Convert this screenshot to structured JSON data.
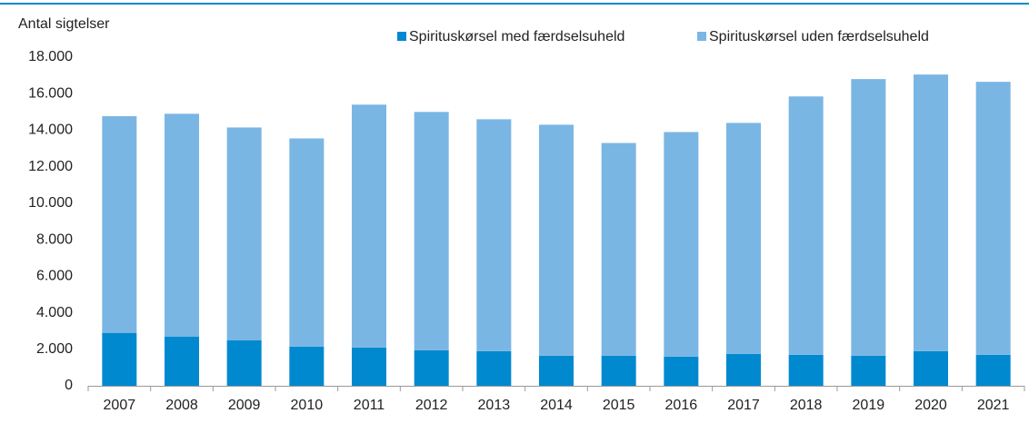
{
  "chart_data": {
    "type": "stacked_bar",
    "y_axis_label": "Antal sigtelser",
    "categories": [
      "2007",
      "2008",
      "2009",
      "2010",
      "2011",
      "2012",
      "2013",
      "2014",
      "2015",
      "2016",
      "2017",
      "2018",
      "2019",
      "2020",
      "2021"
    ],
    "series": [
      {
        "name": "Spirituskørsel med færdselsuheld",
        "color": "#0089cf",
        "values": [
          2900,
          2700,
          2500,
          2150,
          2100,
          1950,
          1900,
          1650,
          1650,
          1600,
          1750,
          1700,
          1650,
          1900,
          1700
        ]
      },
      {
        "name": "Spirituskørsel uden færdselsuheld",
        "color": "#7ab6e4",
        "values": [
          11870,
          12200,
          11650,
          11400,
          13300,
          13050,
          12700,
          12650,
          11650,
          12300,
          12650,
          14150,
          15150,
          15150,
          14950
        ]
      }
    ],
    "ylim": [
      0,
      18000
    ],
    "yticks": [
      0,
      {
        "value": 2000,
        "label": "2.000"
      },
      {
        "value": 4000,
        "label": "4.000"
      },
      {
        "value": 6000,
        "label": "6.000"
      },
      {
        "value": 8000,
        "label": "8.000"
      },
      {
        "value": 10000,
        "label": "10.000"
      },
      {
        "value": 12000,
        "label": "12.000"
      },
      {
        "value": 14000,
        "label": "14.000"
      },
      {
        "value": 16000,
        "label": "16.000"
      },
      {
        "value": 18000,
        "label": "18.000"
      }
    ],
    "grid": false
  }
}
